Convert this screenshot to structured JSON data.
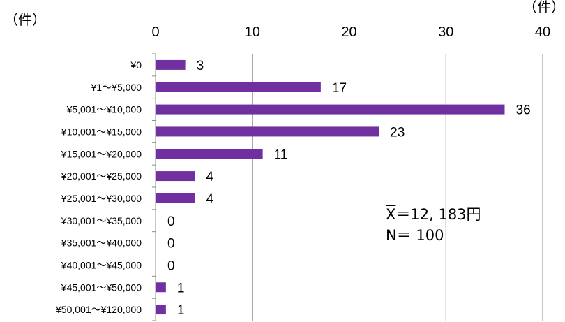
{
  "chart_data": {
    "type": "bar",
    "orientation": "horizontal",
    "x_unit_label": "（件）",
    "y_unit_label": "（件）",
    "xlim": [
      0,
      40
    ],
    "x_ticks": [
      "0",
      "10",
      "20",
      "30",
      "40"
    ],
    "grid": true,
    "bar_color": "#7030a0",
    "categories": [
      "¥0",
      "¥1〜¥5,000",
      "¥5,001〜¥10,000",
      "¥10,001〜¥15,000",
      "¥15,001〜¥20,000",
      "¥20,001〜¥25,000",
      "¥25,001〜¥30,000",
      "¥30,001〜¥35,000",
      "¥35,001〜¥40,000",
      "¥40,001〜¥45,000",
      "¥45,001〜¥50,000",
      "¥50,001〜¥120,000"
    ],
    "values": [
      3,
      17,
      36,
      23,
      11,
      4,
      4,
      0,
      0,
      0,
      1,
      1
    ],
    "annotations": {
      "mean_symbol": "X",
      "mean_text": "＝12, 183円",
      "n_text": "N＝ 100"
    }
  }
}
